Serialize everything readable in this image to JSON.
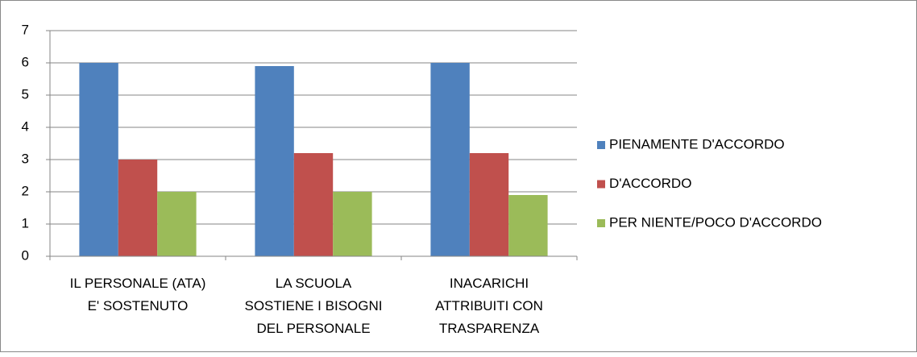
{
  "chart_data": {
    "type": "bar",
    "categories": [
      "IL PERSONALE (ATA)\nE' SOSTENUTO",
      "LA SCUOLA\nSOSTIENE I BISOGNI\nDEL PERSONALE",
      "INACARICHI\nATTRIBUITI CON\nTRASPARENZA"
    ],
    "series": [
      {
        "name": "PIENAMENTE D'ACCORDO",
        "color": "#4f81bd",
        "values": [
          6,
          5.9,
          6
        ]
      },
      {
        "name": "D'ACCORDO",
        "color": "#c0504d",
        "values": [
          3,
          3.2,
          3.2
        ]
      },
      {
        "name": "PER NIENTE/POCO D'ACCORDO",
        "color": "#9bbb59",
        "values": [
          2,
          2,
          1.9
        ]
      }
    ],
    "ylim": [
      0,
      7
    ],
    "yticks": [
      0,
      1,
      2,
      3,
      4,
      5,
      6,
      7
    ],
    "grid": true,
    "legend": "right"
  }
}
